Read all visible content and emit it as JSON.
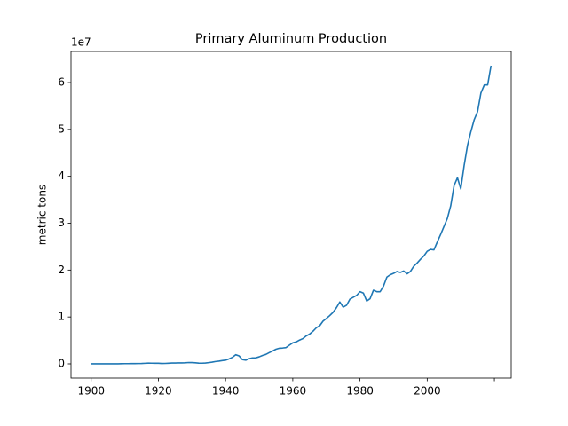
{
  "chart_data": {
    "type": "line",
    "title": "Primary Aluminum Production",
    "y_label": "metric tons",
    "y_offset_label": "1e7",
    "x": [
      1900,
      1901,
      1902,
      1903,
      1904,
      1905,
      1906,
      1907,
      1908,
      1909,
      1910,
      1911,
      1912,
      1913,
      1914,
      1915,
      1916,
      1917,
      1918,
      1919,
      1920,
      1921,
      1922,
      1923,
      1924,
      1925,
      1926,
      1927,
      1928,
      1929,
      1930,
      1931,
      1932,
      1933,
      1934,
      1935,
      1936,
      1937,
      1938,
      1939,
      1940,
      1941,
      1942,
      1943,
      1944,
      1945,
      1946,
      1947,
      1948,
      1949,
      1950,
      1951,
      1952,
      1953,
      1954,
      1955,
      1956,
      1957,
      1958,
      1959,
      1960,
      1961,
      1962,
      1963,
      1964,
      1965,
      1966,
      1967,
      1968,
      1969,
      1970,
      1971,
      1972,
      1973,
      1974,
      1975,
      1976,
      1977,
      1978,
      1979,
      1980,
      1981,
      1982,
      1983,
      1984,
      1985,
      1986,
      1987,
      1988,
      1989,
      1990,
      1991,
      1992,
      1993,
      1994,
      1995,
      1996,
      1997,
      1998,
      1999,
      2000,
      2001,
      2002,
      2003,
      2004,
      2005,
      2006,
      2007,
      2008,
      2009,
      2010,
      2011,
      2012,
      2013,
      2014,
      2015,
      2016,
      2017,
      2018,
      2019
    ],
    "series": [
      {
        "name": "Primary Aluminum Production",
        "color": "#1f77b4",
        "values": [
          7300,
          7500,
          7800,
          8200,
          9300,
          11500,
          14500,
          19800,
          18900,
          31300,
          44400,
          45100,
          62700,
          65400,
          70800,
          81600,
          116000,
          149000,
          140000,
          131000,
          128000,
          80000,
          96000,
          136000,
          168000,
          182000,
          198000,
          205000,
          232000,
          281000,
          270000,
          221000,
          153000,
          143000,
          170000,
          261000,
          363000,
          494000,
          585000,
          700000,
          792000,
          1050000,
          1380000,
          1950000,
          1710000,
          894000,
          783000,
          1100000,
          1260000,
          1290000,
          1500000,
          1790000,
          2020000,
          2400000,
          2750000,
          3120000,
          3330000,
          3380000,
          3470000,
          4000000,
          4480000,
          4670000,
          5070000,
          5380000,
          5950000,
          6340000,
          6950000,
          7690000,
          8120000,
          9110000,
          9680000,
          10300000,
          11000000,
          12000000,
          13200000,
          12100000,
          12500000,
          13800000,
          14200000,
          14600000,
          15400000,
          15100000,
          13400000,
          13900000,
          15700000,
          15400000,
          15400000,
          16600000,
          18500000,
          19000000,
          19300000,
          19700000,
          19500000,
          19800000,
          19200000,
          19700000,
          20800000,
          21500000,
          22300000,
          23000000,
          24000000,
          24400000,
          24300000,
          26000000,
          27600000,
          29300000,
          31000000,
          33700000,
          38000000,
          39700000,
          37300000,
          42300000,
          46600000,
          49500000,
          52100000,
          53800000,
          57800000,
          59500000,
          59500000,
          63600000
        ]
      }
    ],
    "xlim": [
      1894,
      2025
    ],
    "xticks": [
      1900,
      1920,
      1940,
      1960,
      1980,
      2000,
      {
        "value": 2020,
        "label": null
      }
    ],
    "ylim": [
      -3030000,
      66630000
    ],
    "yticks": [
      0,
      {
        "value": 10000000,
        "label": "1"
      },
      {
        "value": 20000000,
        "label": "2"
      },
      {
        "value": 30000000,
        "label": "3"
      },
      {
        "value": 40000000,
        "label": "4"
      },
      {
        "value": 50000000,
        "label": "5"
      },
      {
        "value": 60000000,
        "label": "6"
      }
    ],
    "grid": false
  }
}
